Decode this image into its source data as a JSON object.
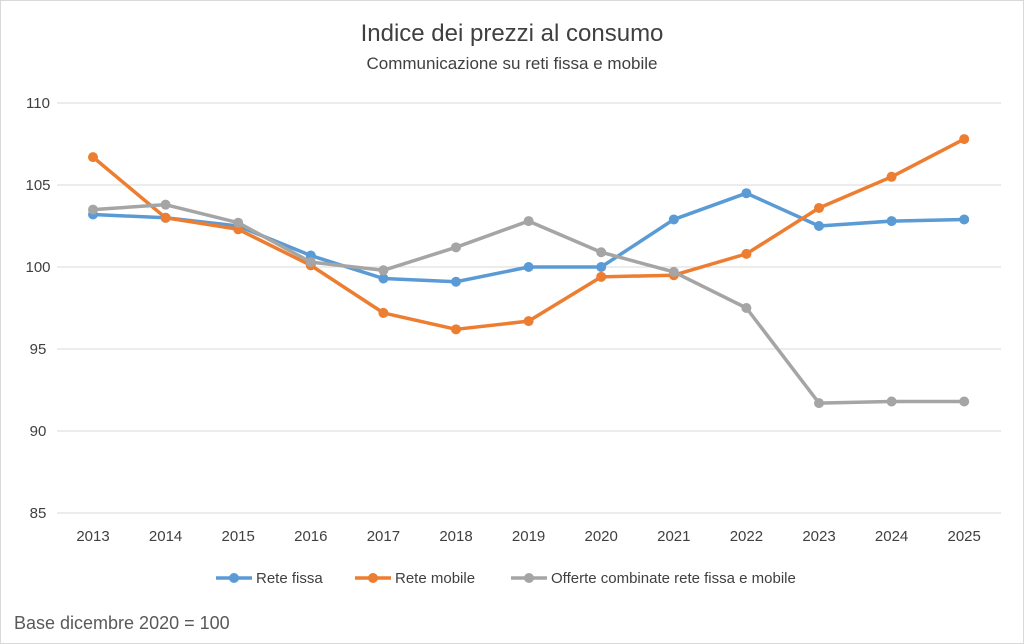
{
  "chart_data": {
    "type": "line",
    "title": "Indice dei prezzi al consumo",
    "subtitle": "Communicazione su reti fissa e mobile",
    "x": [
      "2013",
      "2014",
      "2015",
      "2016",
      "2017",
      "2018",
      "2019",
      "2020",
      "2021",
      "2022",
      "2023",
      "2024",
      "2025"
    ],
    "ylim": [
      85,
      110
    ],
    "yticks": [
      85,
      90,
      95,
      100,
      105,
      110
    ],
    "grid": true,
    "legend_position": "bottom",
    "series": [
      {
        "name": "Rete fissa",
        "color": "#5b9bd5",
        "values": [
          103.2,
          103.0,
          102.5,
          100.7,
          99.3,
          99.1,
          100.0,
          100.0,
          102.9,
          104.5,
          102.5,
          102.8,
          102.9
        ]
      },
      {
        "name": "Rete mobile",
        "color": "#ed7d31",
        "values": [
          106.7,
          103.0,
          102.3,
          100.1,
          97.2,
          96.2,
          96.7,
          99.4,
          99.5,
          100.8,
          103.6,
          105.5,
          107.8
        ]
      },
      {
        "name": "Offerte combinate rete fissa e mobile",
        "color": "#a5a5a5",
        "values": [
          103.5,
          103.8,
          102.7,
          100.3,
          99.8,
          101.2,
          102.8,
          100.9,
          99.7,
          97.5,
          91.7,
          91.8,
          91.8
        ]
      }
    ],
    "note": "Base dicembre 2020 = 100"
  }
}
